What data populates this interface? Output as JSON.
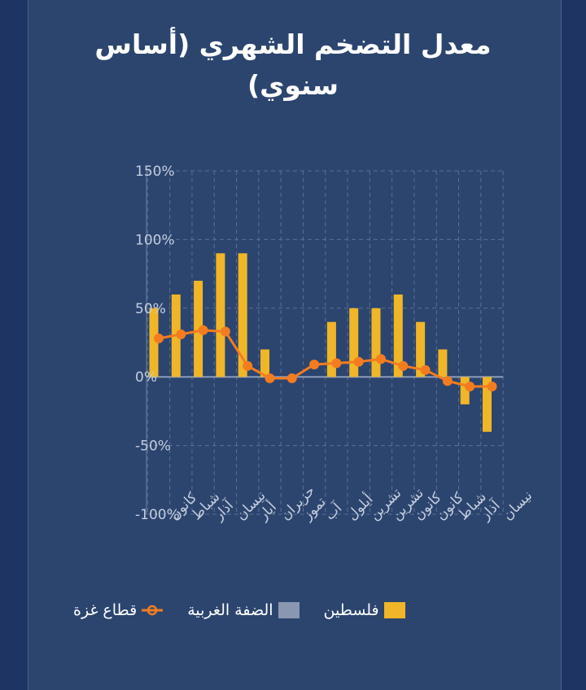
{
  "title": "معدل التضخم الشهري (أساس سنوي)",
  "colors": {
    "palestine": "#f0b627",
    "westbank": "#8a97b0",
    "gaza": "#f47c20",
    "grid": "#5a6f94",
    "axis_text": "#c5cede"
  },
  "legend": {
    "palestine": "فلسطين",
    "westbank": "الضفة الغربية",
    "gaza": "قطاع غزة"
  },
  "chart_data": {
    "type": "bar",
    "categories": [
      "كانون",
      "شباط",
      "آذار",
      "نيسان",
      "أيار",
      "حزيران",
      "تموز",
      "آب",
      "أيلول",
      "تشرين",
      "تشرين",
      "كانون",
      "كانون",
      "شباط",
      "آذار",
      "نيسان"
    ],
    "y_ticks": [
      "150%",
      "100%",
      "50%",
      "0%",
      "-50%",
      "-100%"
    ],
    "ylim": [
      -100,
      150
    ],
    "series": [
      {
        "name": "فلسطين",
        "type": "bar",
        "values": [
          50,
          60,
          70,
          90,
          90,
          20,
          null,
          null,
          40,
          50,
          50,
          60,
          40,
          20,
          -20,
          -40
        ]
      },
      {
        "name": "قطاع غزة",
        "type": "line",
        "values": [
          28,
          31,
          34,
          33,
          8,
          -1,
          -1,
          9,
          10,
          11,
          13,
          8,
          5,
          -3,
          -7,
          -7
        ]
      }
    ]
  }
}
